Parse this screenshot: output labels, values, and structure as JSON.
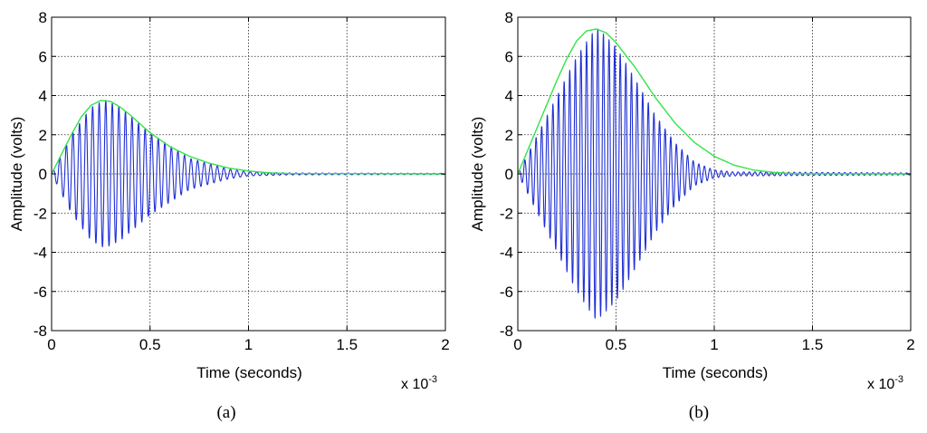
{
  "chart_data": [
    {
      "type": "line",
      "panel_label": "(a)",
      "xlabel": "Time (seconds)",
      "ylabel": "Amplitude (volts)",
      "x_multiplier_label": "x 10",
      "x_multiplier_exponent": "-3",
      "xlim": [
        0,
        2
      ],
      "ylim": [
        -8,
        8
      ],
      "xticks": [
        0,
        0.5,
        1,
        1.5,
        2
      ],
      "xtick_labels": [
        "0",
        "0.5",
        "1",
        "1.5",
        "2"
      ],
      "yticks": [
        -8,
        -6,
        -4,
        -2,
        0,
        2,
        4,
        6,
        8
      ],
      "ytick_labels": [
        "-8",
        "-6",
        "-4",
        "-2",
        "0",
        "2",
        "4",
        "6",
        "8"
      ],
      "grid": true,
      "series": [
        {
          "color": "#1f2fd6",
          "style": "oscillating",
          "oscillation_cycles_per_unit": 30,
          "envelope_x": [
            0,
            0.1,
            0.2,
            0.27,
            0.35,
            0.5,
            0.7,
            0.9,
            1.0,
            1.2,
            1.5,
            2.0
          ],
          "envelope_y": [
            0,
            2.0,
            3.4,
            3.8,
            3.4,
            2.1,
            0.8,
            0.25,
            0.1,
            0.05,
            0.04,
            0.03
          ]
        },
        {
          "color": "#33e34a",
          "style": "envelope",
          "x": [
            0,
            0.05,
            0.1,
            0.15,
            0.2,
            0.25,
            0.3,
            0.35,
            0.4,
            0.5,
            0.6,
            0.7,
            0.8,
            0.9,
            1.0,
            1.1,
            1.2
          ],
          "y": [
            0,
            1.0,
            2.0,
            2.9,
            3.5,
            3.75,
            3.7,
            3.4,
            3.0,
            2.1,
            1.4,
            0.9,
            0.55,
            0.3,
            0.15,
            0.06,
            0.02
          ]
        }
      ]
    },
    {
      "type": "line",
      "panel_label": "(b)",
      "xlabel": "Time (seconds)",
      "ylabel": "Amplitude (volts)",
      "x_multiplier_label": "x 10",
      "x_multiplier_exponent": "-3",
      "xlim": [
        0,
        2
      ],
      "ylim": [
        -8,
        8
      ],
      "xticks": [
        0,
        0.5,
        1,
        1.5,
        2
      ],
      "xtick_labels": [
        "0",
        "0.5",
        "1",
        "1.5",
        "2"
      ],
      "yticks": [
        -8,
        -6,
        -4,
        -2,
        0,
        2,
        4,
        6,
        8
      ],
      "ytick_labels": [
        "-8",
        "-6",
        "-4",
        "-2",
        "0",
        "2",
        "4",
        "6",
        "8"
      ],
      "grid": true,
      "series": [
        {
          "color": "#1f2fd6",
          "style": "oscillating",
          "oscillation_cycles_per_unit": 35,
          "envelope_x": [
            0,
            0.1,
            0.2,
            0.3,
            0.4,
            0.5,
            0.6,
            0.7,
            0.8,
            0.9,
            1.0,
            1.1,
            1.2,
            1.5,
            2.0
          ],
          "envelope_y": [
            0,
            2.0,
            4.0,
            6.0,
            7.5,
            6.5,
            4.8,
            3.0,
            1.6,
            0.6,
            0.2,
            0.1,
            0.1,
            0.08,
            0.05
          ]
        },
        {
          "color": "#33e34a",
          "style": "envelope",
          "x": [
            0,
            0.05,
            0.1,
            0.15,
            0.2,
            0.25,
            0.3,
            0.35,
            0.4,
            0.45,
            0.5,
            0.6,
            0.7,
            0.8,
            0.9,
            1.0,
            1.1,
            1.2,
            1.3,
            1.4
          ],
          "y": [
            0,
            1.2,
            2.4,
            3.6,
            4.8,
            5.9,
            6.8,
            7.3,
            7.4,
            7.2,
            6.7,
            5.4,
            3.9,
            2.6,
            1.6,
            0.9,
            0.45,
            0.2,
            0.08,
            0.02
          ]
        }
      ]
    }
  ]
}
